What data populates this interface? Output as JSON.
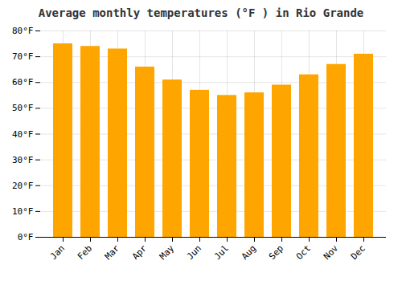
{
  "chart_data": {
    "type": "bar",
    "title": "Average monthly temperatures (°F ) in Rio Grande",
    "categories": [
      "Jan",
      "Feb",
      "Mar",
      "Apr",
      "May",
      "Jun",
      "Jul",
      "Aug",
      "Sep",
      "Oct",
      "Nov",
      "Dec"
    ],
    "values": [
      75,
      74,
      73,
      66,
      61,
      57,
      55,
      56,
      59,
      63,
      67,
      71
    ],
    "color": "#FFA500",
    "ylim": [
      0,
      80
    ],
    "yticks": [
      {
        "value": 0,
        "label": "0°F"
      },
      {
        "value": 10,
        "label": "10°F"
      },
      {
        "value": 20,
        "label": "20°F"
      },
      {
        "value": 30,
        "label": "30°F"
      },
      {
        "value": 40,
        "label": "40°F"
      },
      {
        "value": 50,
        "label": "50°F"
      },
      {
        "value": 60,
        "label": "60°F"
      },
      {
        "value": 70,
        "label": "70°F"
      },
      {
        "value": 80,
        "label": "80°F"
      }
    ],
    "grid": true
  }
}
